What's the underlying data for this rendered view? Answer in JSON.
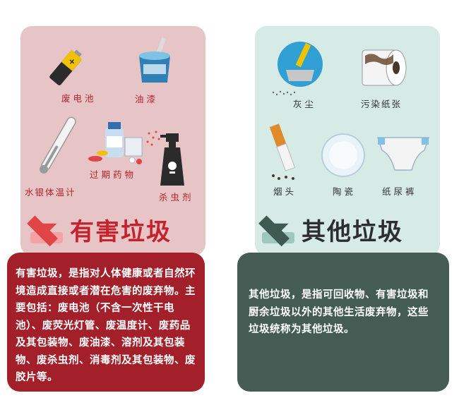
{
  "hazardous": {
    "title": "有害垃圾",
    "items": [
      "废电池",
      "油漆",
      "过期药物",
      "水银体温计",
      "杀虫剂"
    ],
    "description": "有害垃圾，是指对人体健康或者自然环境造成直接或者潜在危害的废弃物。主要包括：废电池（不含一次性干电池）、废荧光灯管、废温度计、废药品及其包装物、废油漆、溶剂及其包装物、废杀虫剂、消毒剂及其包装物、废胶片等。"
  },
  "other": {
    "title": "其他垃圾",
    "items": [
      "灰尘",
      "污染纸张",
      "烟头",
      "陶瓷",
      "纸尿裤"
    ],
    "description": "其他垃圾，是指可回收物、有害垃圾和厨余垃圾以外的其他生活废弃物，这些垃圾统称为其他垃圾。"
  },
  "colors": {
    "hazardous_light": "#e7c5c7",
    "hazardous_dark": "#a3202b",
    "other_light": "#d6ebe6",
    "other_dark": "#445c53"
  }
}
